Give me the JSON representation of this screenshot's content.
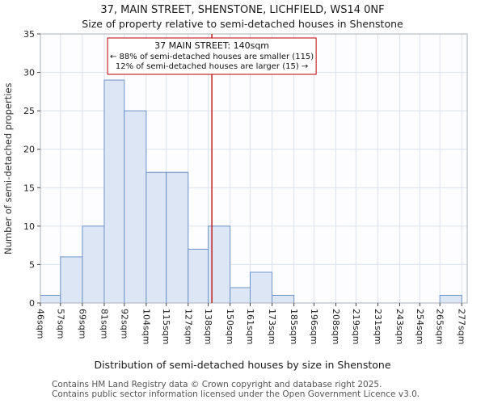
{
  "title": "37, MAIN STREET, SHENSTONE, LICHFIELD, WS14 0NF",
  "subtitle": "Size of property relative to semi-detached houses in Shenstone",
  "chart_data": {
    "type": "bar",
    "title": "37, MAIN STREET, SHENSTONE, LICHFIELD, WS14 0NF",
    "subtitle": "Size of property relative to semi-detached houses in Shenstone",
    "xlabel": "Distribution of semi-detached houses by size in Shenstone",
    "ylabel": "Number of semi-detached properties",
    "ylim": [
      0,
      35
    ],
    "yticks": [
      0,
      5,
      10,
      15,
      20,
      25,
      30,
      35
    ],
    "bin_edges": [
      46,
      57,
      69,
      81,
      92,
      104,
      115,
      127,
      138,
      150,
      161,
      173,
      185,
      196,
      208,
      219,
      231,
      243,
      254,
      265,
      277
    ],
    "tick_labels": [
      "46sqm",
      "57sqm",
      "69sqm",
      "81sqm",
      "92sqm",
      "104sqm",
      "115sqm",
      "127sqm",
      "138sqm",
      "150sqm",
      "161sqm",
      "173sqm",
      "185sqm",
      "196sqm",
      "208sqm",
      "219sqm",
      "231sqm",
      "243sqm",
      "254sqm",
      "265sqm",
      "277sqm"
    ],
    "values": [
      1,
      6,
      10,
      29,
      25,
      17,
      17,
      7,
      10,
      2,
      4,
      1,
      0,
      0,
      0,
      0,
      0,
      0,
      0,
      1
    ],
    "grid": true,
    "legend": "none",
    "bar_fill": "#dce6f5",
    "bar_stroke": "#6f94c9",
    "grid_color": "#dce1ec",
    "box_color": "#aab0bc",
    "marker": {
      "value": 140,
      "color": "#bb0000",
      "label": "37 MAIN STREET: 140sqm",
      "smaller_line": "← 88% of semi-detached houses are smaller (115)",
      "larger_line": "12% of semi-detached houses are larger (15) →"
    }
  },
  "footer": {
    "line1": "Contains HM Land Registry data © Crown copyright and database right 2025.",
    "line2": "Contains public sector information licensed under the Open Government Licence v3.0."
  }
}
